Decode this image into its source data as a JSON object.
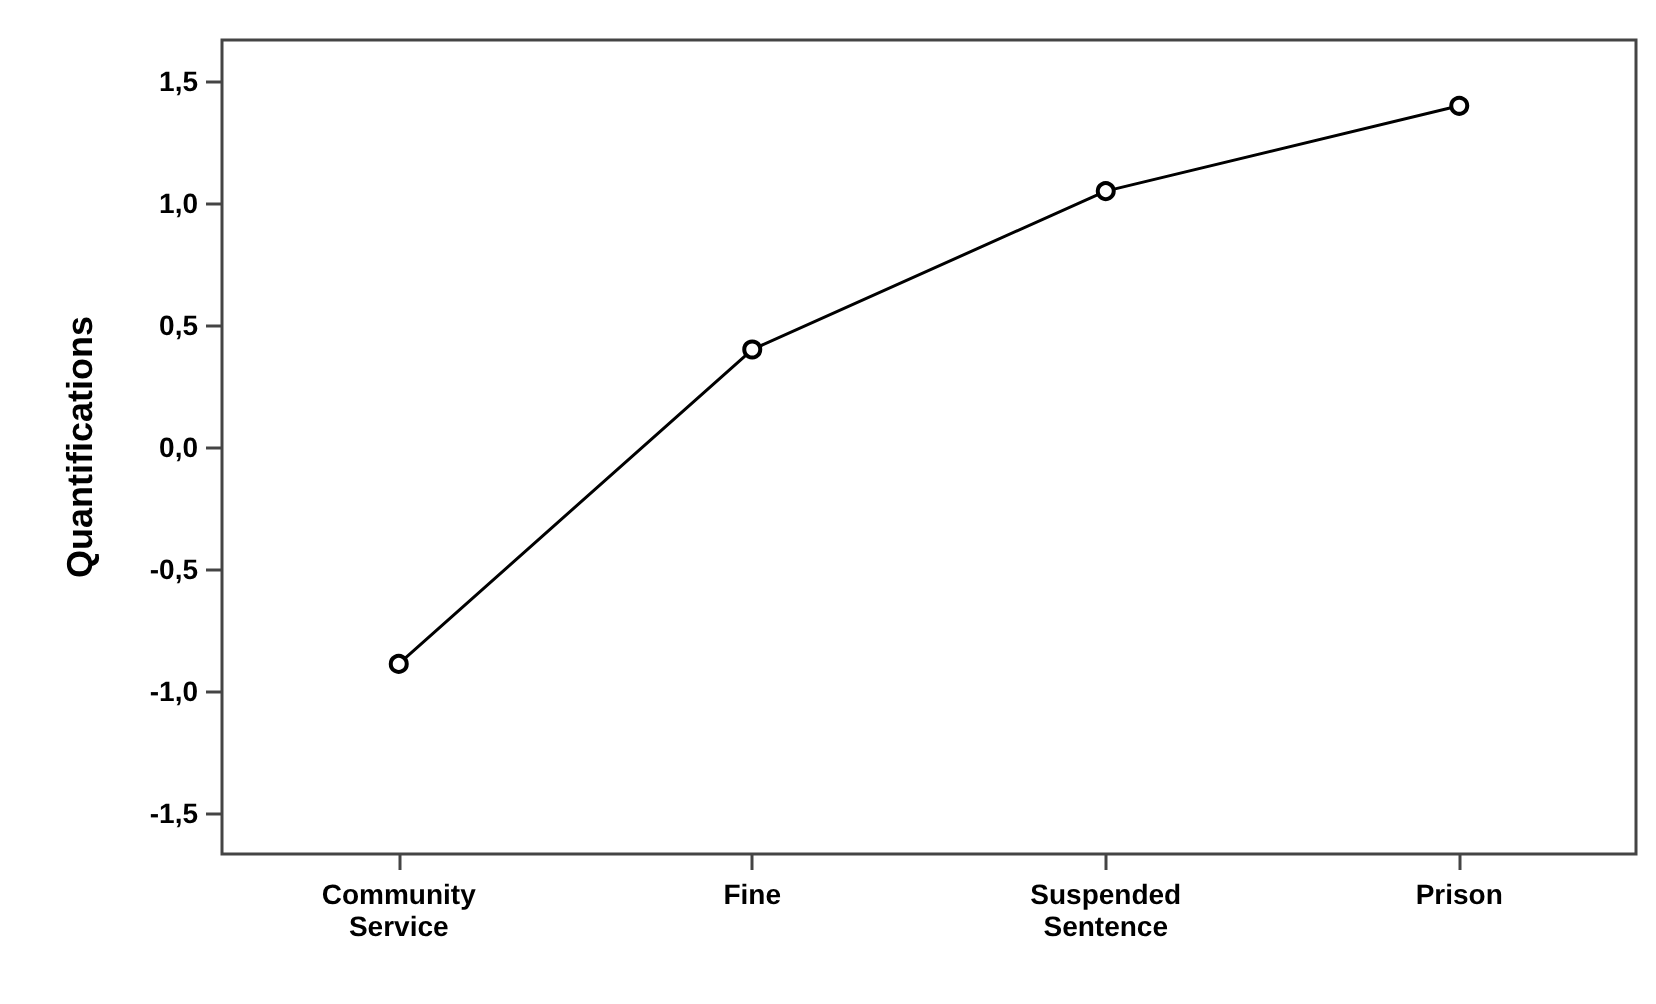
{
  "chart_data": {
    "type": "line",
    "ylabel": "Quantifications",
    "categories": [
      "Community\nService",
      "Fine",
      "Suspended\nSentence",
      "Prison"
    ],
    "values": [
      -0.89,
      0.4,
      1.05,
      1.4
    ],
    "color": "#000000",
    "marker": "circle",
    "line_style": "solid",
    "grid": false,
    "ylim": [
      -1.67,
      1.67
    ],
    "yticks": [
      {
        "value": -1.5,
        "label": "-1,5"
      },
      {
        "value": -1,
        "label": "-1,0"
      },
      {
        "value": -0.5,
        "label": "-0,5"
      },
      {
        "value": 0,
        "label": "0,0"
      },
      {
        "value": 0.5,
        "label": "0,5"
      },
      {
        "value": 1,
        "label": "1,0"
      },
      {
        "value": 1.5,
        "label": "1,5"
      }
    ]
  }
}
